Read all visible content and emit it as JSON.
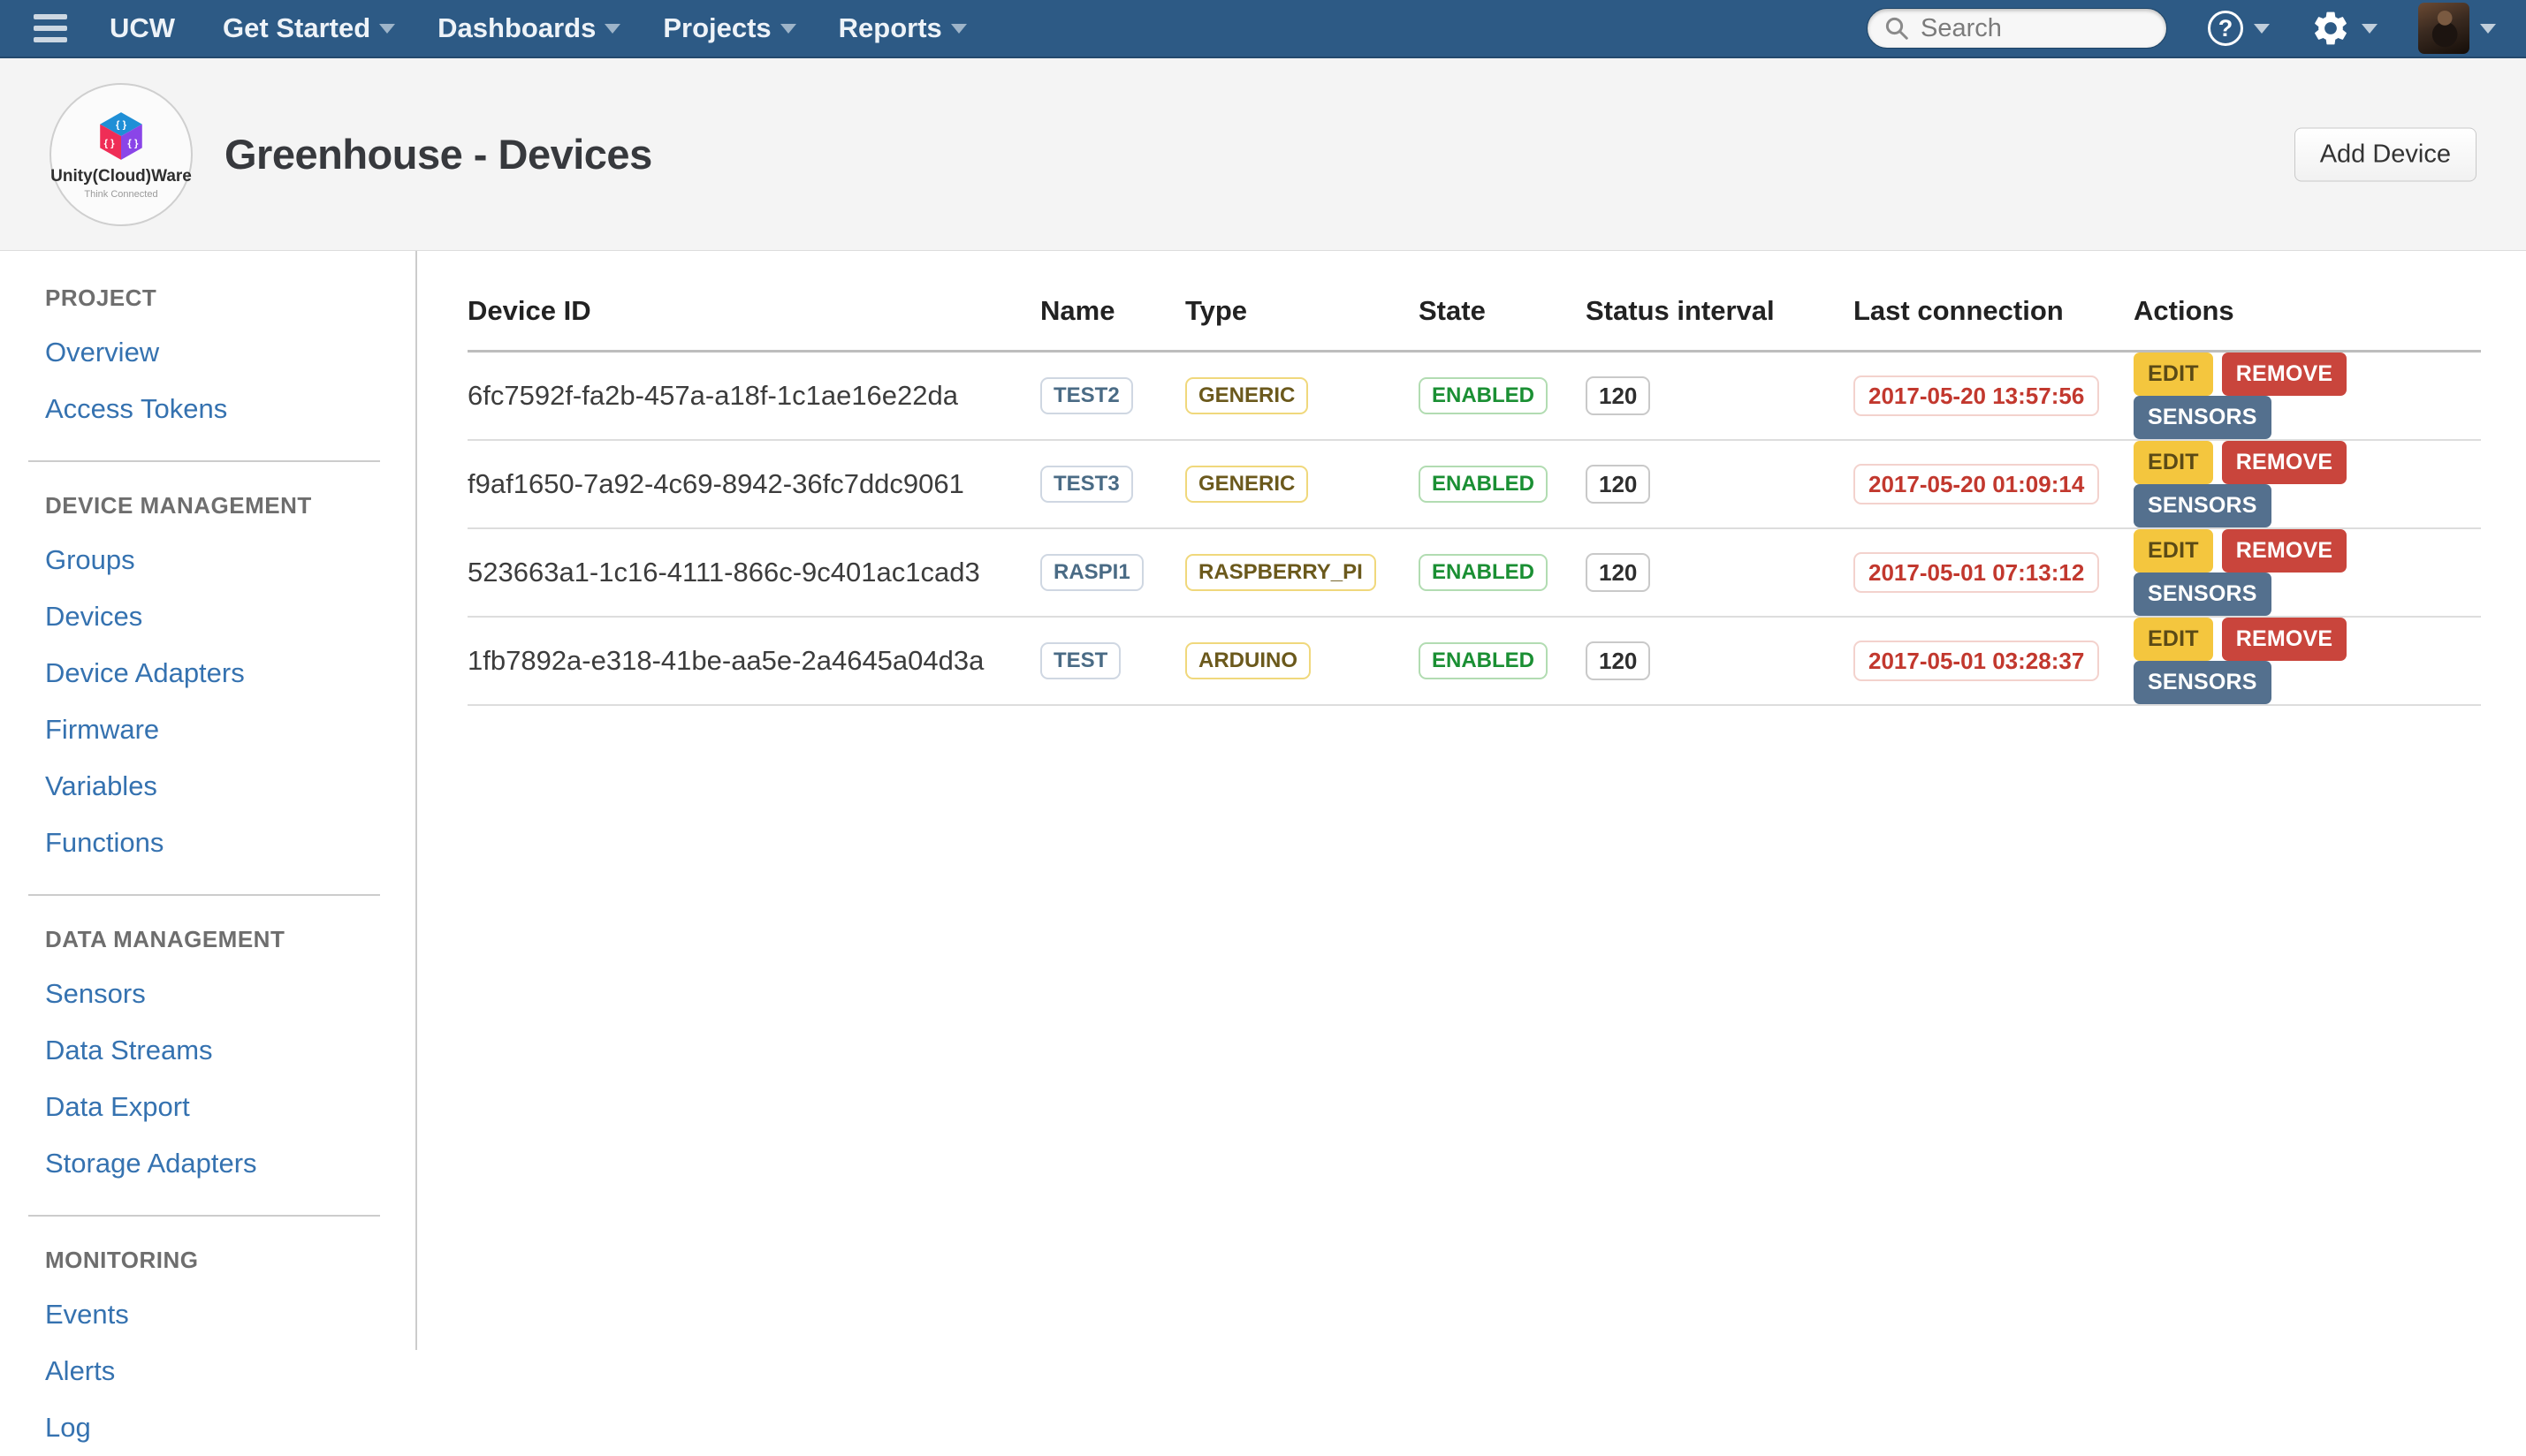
{
  "navbar": {
    "brand": "UCW",
    "items": [
      "Get Started",
      "Dashboards",
      "Projects",
      "Reports"
    ],
    "search_placeholder": "Search",
    "search_value": ""
  },
  "header": {
    "title": "Greenhouse - Devices",
    "add_button": "Add Device",
    "logo": {
      "line1": "Unity(Cloud)Ware",
      "line2": "Think Connected"
    }
  },
  "sidebar": {
    "sections": [
      {
        "heading": "PROJECT",
        "items": [
          "Overview",
          "Access Tokens"
        ]
      },
      {
        "heading": "DEVICE MANAGEMENT",
        "items": [
          "Groups",
          "Devices",
          "Device Adapters",
          "Firmware",
          "Variables",
          "Functions"
        ]
      },
      {
        "heading": "DATA MANAGEMENT",
        "items": [
          "Sensors",
          "Data Streams",
          "Data Export",
          "Storage Adapters"
        ]
      },
      {
        "heading": "MONITORING",
        "items": [
          "Events",
          "Alerts",
          "Log"
        ]
      }
    ]
  },
  "table": {
    "columns": [
      "Device ID",
      "Name",
      "Type",
      "State",
      "Status interval",
      "Last connection",
      "Actions"
    ],
    "action_labels": [
      "EDIT",
      "REMOVE",
      "SENSORS"
    ],
    "rows": [
      {
        "device_id": "6fc7592f-fa2b-457a-a18f-1c1ae16e22da",
        "name": "TEST2",
        "type": "GENERIC",
        "state": "ENABLED",
        "status_interval": "120",
        "last_connection": "2017-05-20 13:57:56"
      },
      {
        "device_id": "f9af1650-7a92-4c69-8942-36fc7ddc9061",
        "name": "TEST3",
        "type": "GENERIC",
        "state": "ENABLED",
        "status_interval": "120",
        "last_connection": "2017-05-20 01:09:14"
      },
      {
        "device_id": "523663a1-1c16-4111-866c-9c401ac1cad3",
        "name": "RASPI1",
        "type": "RASPBERRY_PI",
        "state": "ENABLED",
        "status_interval": "120",
        "last_connection": "2017-05-01 07:13:12"
      },
      {
        "device_id": "1fb7892a-e318-41be-aa5e-2a4645a04d3a",
        "name": "TEST",
        "type": "ARDUINO",
        "state": "ENABLED",
        "status_interval": "120",
        "last_connection": "2017-05-01 03:28:37"
      }
    ]
  },
  "colors": {
    "navbar_bg": "#2d5a85",
    "link_blue": "#3572b0",
    "badge_name_text": "#4a6b85",
    "badge_type_border": "#f0d87c",
    "state_green": "#1a8f33",
    "timestamp_red": "#c2382e",
    "edit_yellow": "#f4c63e",
    "remove_red": "#c9453c",
    "sensors_blue": "#54708e"
  }
}
